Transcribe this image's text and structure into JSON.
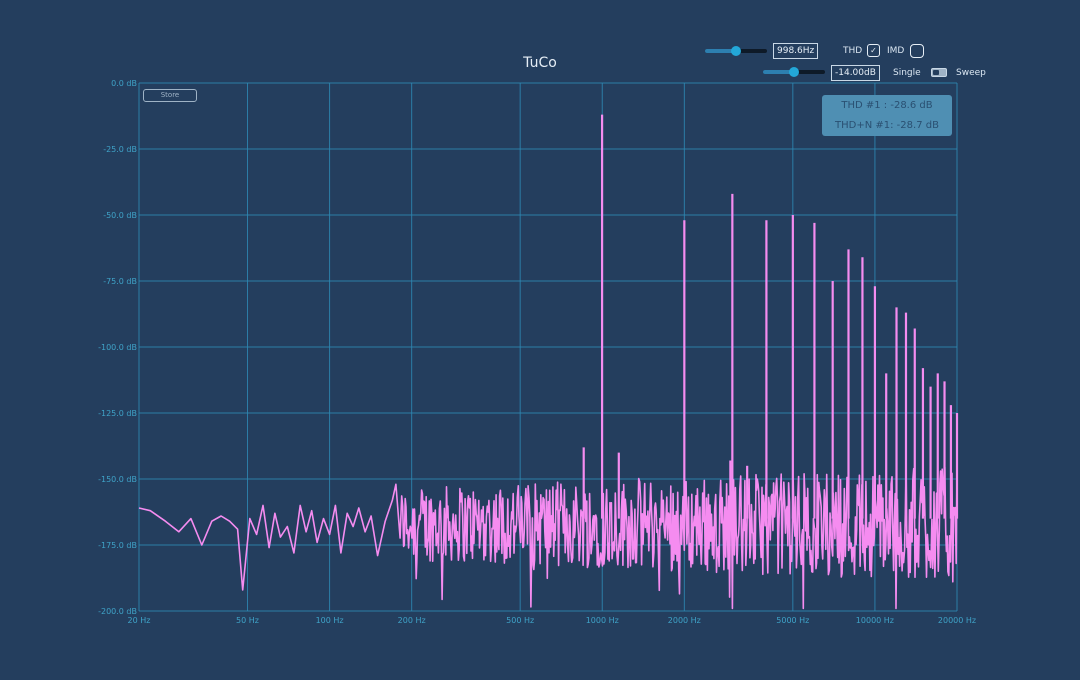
{
  "app": {
    "title": "TuCo"
  },
  "controls": {
    "frequency": {
      "value": "998.6Hz",
      "slider_level": 0.5
    },
    "level": {
      "value": "-14.00dB",
      "slider_level": 0.5
    },
    "thd_label": "THD",
    "thd_checked": true,
    "thd_check_glyph": "✓",
    "imd_label": "IMD",
    "imd_checked": false,
    "single_label": "Single",
    "sweep_label": "Sweep",
    "mode": "Single"
  },
  "store_button": {
    "label": "Store"
  },
  "results": {
    "thd": "THD #1 : -28.6 dB",
    "thdn": "THD+N #1: -28.7 dB"
  },
  "colors": {
    "background": "#243e5e",
    "grid": "#2e88b3",
    "tick_text": "#3fa3c8",
    "trace": "#f58cf0",
    "panel": "#4f8fb3"
  },
  "chart_data": {
    "type": "line",
    "x_scale": "log",
    "xlim": [
      20,
      20000
    ],
    "ylim": [
      -200,
      0
    ],
    "grid": true,
    "x_ticks": [
      {
        "value": 20,
        "label": "20 Hz"
      },
      {
        "value": 50,
        "label": "50 Hz"
      },
      {
        "value": 100,
        "label": "100 Hz"
      },
      {
        "value": 200,
        "label": "200 Hz"
      },
      {
        "value": 500,
        "label": "500 Hz"
      },
      {
        "value": 1000,
        "label": "1000 Hz"
      },
      {
        "value": 2000,
        "label": "2000 Hz"
      },
      {
        "value": 5000,
        "label": "5000 Hz"
      },
      {
        "value": 10000,
        "label": "10000 Hz"
      },
      {
        "value": 20000,
        "label": "20000 Hz"
      }
    ],
    "y_ticks": [
      {
        "value": 0,
        "label": "0.0 dB"
      },
      {
        "value": -25,
        "label": "-25.0 dB"
      },
      {
        "value": -50,
        "label": "-50.0 dB"
      },
      {
        "value": -75,
        "label": "-75.0 dB"
      },
      {
        "value": -100,
        "label": "-100.0 dB"
      },
      {
        "value": -125,
        "label": "-125.0 dB"
      },
      {
        "value": -150,
        "label": "-150.0 dB"
      },
      {
        "value": -175,
        "label": "-175.0 dB"
      },
      {
        "value": -200,
        "label": "-200.0 dB"
      }
    ],
    "noise_floor_db": -167,
    "low_freq_trace": [
      [
        20,
        -161
      ],
      [
        22,
        -162
      ],
      [
        25,
        -166
      ],
      [
        28,
        -170
      ],
      [
        31,
        -165
      ],
      [
        34,
        -175
      ],
      [
        37,
        -166
      ],
      [
        40,
        -164
      ],
      [
        43,
        -166
      ],
      [
        46,
        -169
      ],
      [
        48,
        -192
      ],
      [
        51,
        -165
      ],
      [
        54,
        -171
      ],
      [
        57,
        -160
      ],
      [
        60,
        -176
      ],
      [
        63,
        -163
      ],
      [
        66,
        -172
      ],
      [
        70,
        -168
      ],
      [
        74,
        -178
      ],
      [
        78,
        -160
      ],
      [
        82,
        -170
      ],
      [
        86,
        -162
      ],
      [
        90,
        -174
      ],
      [
        95,
        -165
      ],
      [
        100,
        -171
      ],
      [
        105,
        -160
      ],
      [
        110,
        -178
      ],
      [
        116,
        -163
      ],
      [
        122,
        -168
      ],
      [
        128,
        -161
      ],
      [
        135,
        -170
      ],
      [
        142,
        -164
      ],
      [
        150,
        -179
      ],
      [
        160,
        -166
      ],
      [
        170,
        -158
      ],
      [
        175,
        -152
      ],
      [
        180,
        -168
      ]
    ],
    "spikes": [
      {
        "x": 855,
        "y": -138
      },
      {
        "x": 998.6,
        "y": -12
      },
      {
        "x": 1150,
        "y": -140
      },
      {
        "x": 2000,
        "y": -52
      },
      {
        "x": 2950,
        "y": -143
      },
      {
        "x": 3000,
        "y": -42
      },
      {
        "x": 3400,
        "y": -145
      },
      {
        "x": 4000,
        "y": -52
      },
      {
        "x": 5000,
        "y": -50
      },
      {
        "x": 6000,
        "y": -53
      },
      {
        "x": 7000,
        "y": -75
      },
      {
        "x": 8000,
        "y": -63
      },
      {
        "x": 9000,
        "y": -66
      },
      {
        "x": 10000,
        "y": -77
      },
      {
        "x": 11000,
        "y": -110
      },
      {
        "x": 12000,
        "y": -85
      },
      {
        "x": 13000,
        "y": -87
      },
      {
        "x": 14000,
        "y": -93
      },
      {
        "x": 15000,
        "y": -108
      },
      {
        "x": 16000,
        "y": -115
      },
      {
        "x": 17000,
        "y": -110
      },
      {
        "x": 18000,
        "y": -113
      },
      {
        "x": 19000,
        "y": -122
      },
      {
        "x": 20000,
        "y": -125
      }
    ]
  }
}
